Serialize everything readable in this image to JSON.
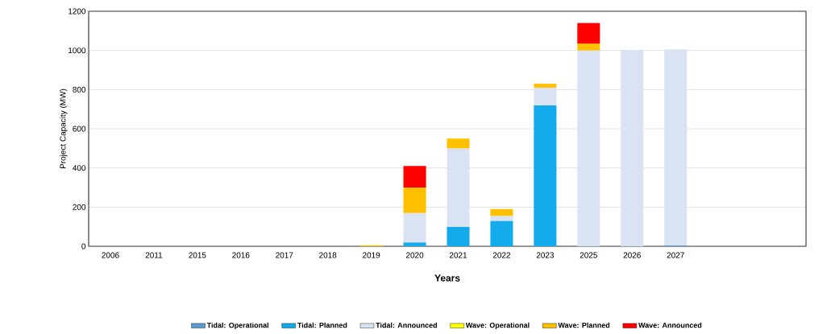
{
  "chart_data": {
    "type": "bar",
    "stacked": true,
    "xlabel": "Years",
    "ylabel": "Project Capacity (MW)",
    "categories": [
      "2006",
      "2011",
      "2015",
      "2016",
      "2017",
      "2018",
      "2019",
      "2020",
      "2021",
      "2022",
      "2023",
      "2025",
      "2026",
      "2027"
    ],
    "series": [
      {
        "name": "Tidal: Operational",
        "color": "#5b9bd5",
        "values": [
          null,
          null,
          null,
          null,
          null,
          null,
          null,
          null,
          null,
          null,
          null,
          null,
          null,
          5
        ]
      },
      {
        "name": "Tidal: Planned",
        "color": "#12aaeb",
        "values": [
          null,
          null,
          null,
          null,
          null,
          null,
          null,
          20,
          100,
          130,
          720,
          null,
          null,
          null
        ]
      },
      {
        "name": "Tidal: Announced",
        "color": "#dae3f3",
        "values": [
          null,
          null,
          null,
          null,
          null,
          null,
          null,
          150,
          400,
          25,
          90,
          1000,
          1000,
          1000
        ]
      },
      {
        "name": "Wave: Operational",
        "color": "#ffff00",
        "values": [
          null,
          null,
          null,
          null,
          null,
          null,
          null,
          null,
          null,
          null,
          null,
          null,
          null,
          null
        ]
      },
      {
        "name": "Wave: Planned",
        "color": "#ffc000",
        "values": [
          null,
          null,
          null,
          null,
          null,
          null,
          5,
          130,
          50,
          35,
          20,
          35,
          null,
          null
        ]
      },
      {
        "name": "Wave: Announced",
        "color": "#ff0000",
        "values": [
          null,
          null,
          null,
          null,
          null,
          null,
          null,
          110,
          null,
          null,
          null,
          105,
          null,
          null
        ]
      }
    ],
    "ylim": [
      0,
      1200
    ],
    "yticks": [
      0,
      200,
      400,
      600,
      800,
      1000,
      1200
    ],
    "grid": "y",
    "legend": "bottom"
  }
}
